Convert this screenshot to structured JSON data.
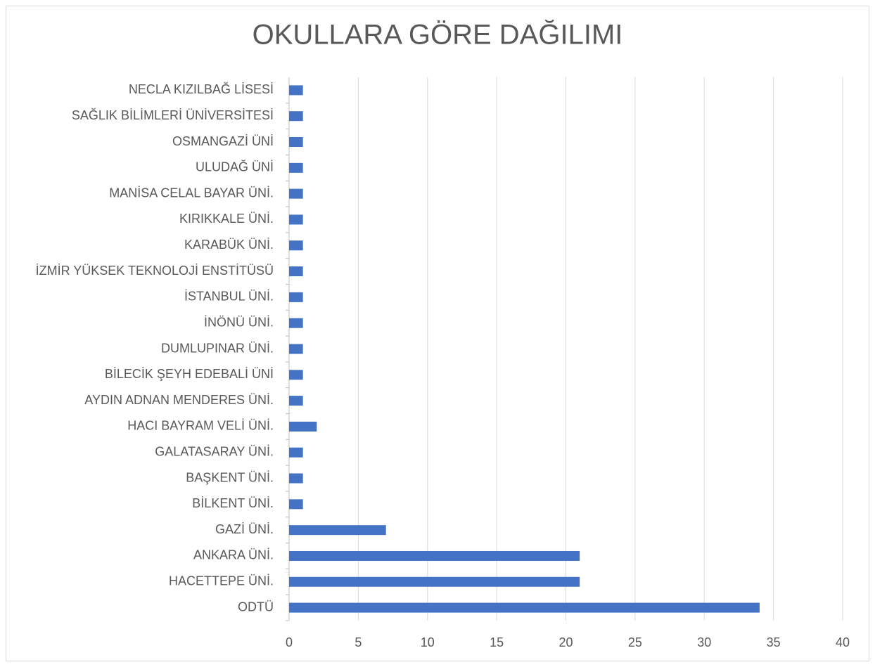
{
  "chart_data": {
    "type": "bar",
    "orientation": "horizontal",
    "title": "OKULLARA GÖRE DAĞILIMI",
    "categories": [
      "ODTÜ",
      "HACETTEPE ÜNİ.",
      "ANKARA ÜNİ.",
      "GAZİ ÜNİ.",
      "BİLKENT ÜNİ.",
      "BAŞKENT ÜNİ.",
      "GALATASARAY ÜNİ.",
      "HACI BAYRAM VELİ ÜNİ.",
      "AYDIN ADNAN MENDERES ÜNİ.",
      "BİLECİK ŞEYH EDEBALİ ÜNİ",
      "DUMLUPINAR ÜNİ.",
      "İNÖNÜ ÜNİ.",
      "İSTANBUL ÜNİ.",
      "İZMİR YÜKSEK TEKNOLOJİ ENSTİTÜSÜ",
      "KARABÜK ÜNİ.",
      "KIRIKKALE ÜNİ.",
      "MANİSA CELAL BAYAR ÜNİ.",
      "ULUDAĞ ÜNİ",
      "OSMANGAZİ ÜNİ",
      "SAĞLIK BİLİMLERİ ÜNİVERSİTESİ",
      "NECLA KIZILBAĞ LİSESİ"
    ],
    "values": [
      34,
      21,
      21,
      7,
      1,
      1,
      1,
      2,
      1,
      1,
      1,
      1,
      1,
      1,
      1,
      1,
      1,
      1,
      1,
      1,
      1
    ],
    "color": "#4472c4",
    "xlim": [
      0,
      40
    ],
    "xticks": [
      0,
      5,
      10,
      15,
      20,
      25,
      30,
      35,
      40
    ],
    "grid": true
  }
}
